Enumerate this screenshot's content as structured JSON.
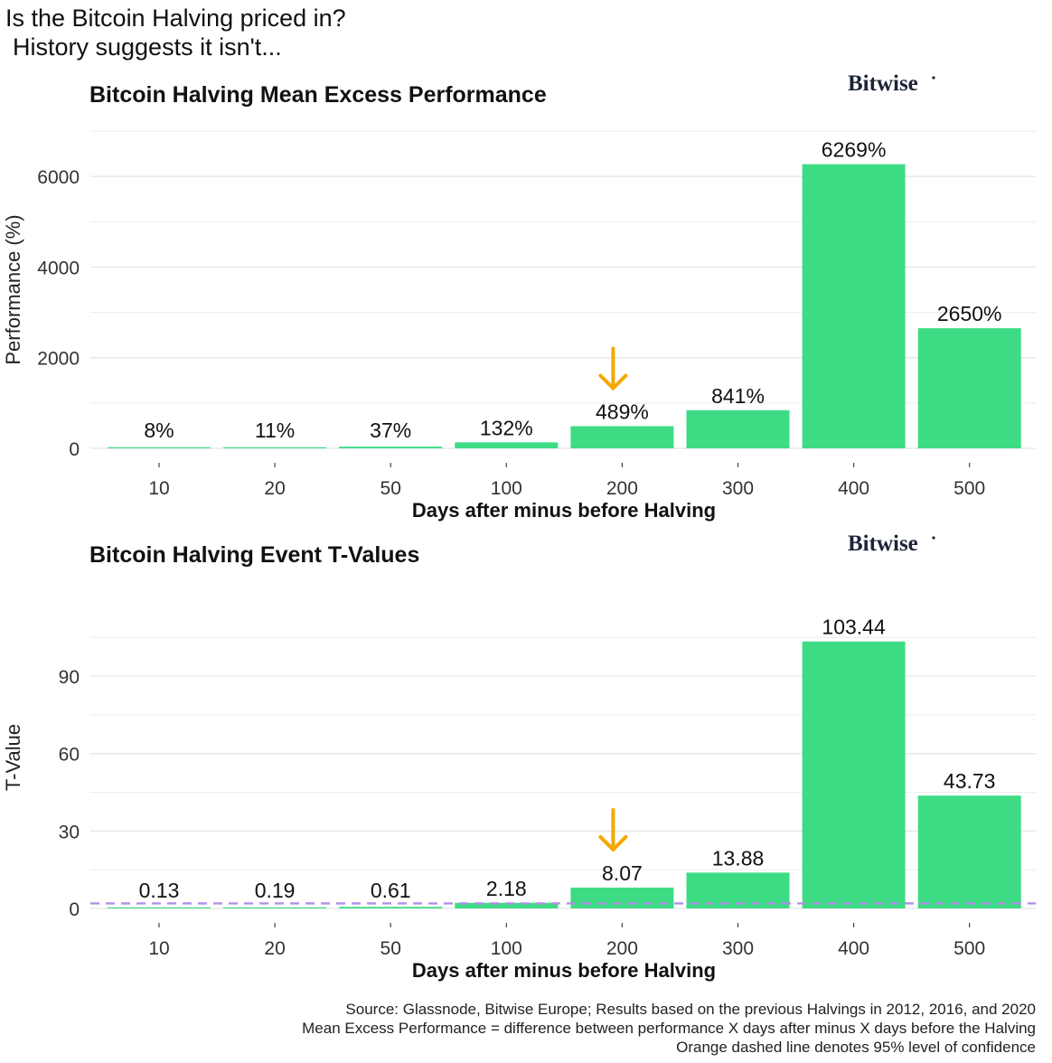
{
  "headline": {
    "line1": "Is the Bitcoin Halving priced in?",
    "line2": "History suggests it isn't..."
  },
  "brand": {
    "logo_text": "Bitwise"
  },
  "colors": {
    "bar": "#3ddc84",
    "arrow": "#f5a800",
    "threshold": "#b48ee8",
    "grid": "#ececec"
  },
  "chart_data": [
    {
      "type": "bar",
      "title": "Bitcoin Halving Mean Excess Performance",
      "xlabel": "Days after minus before Halving",
      "ylabel": "Performance (%)",
      "categories": [
        "10",
        "20",
        "50",
        "100",
        "200",
        "300",
        "400",
        "500"
      ],
      "values": [
        8,
        11,
        37,
        132,
        489,
        841,
        6269,
        2650
      ],
      "value_labels": [
        "8%",
        "11%",
        "37%",
        "132%",
        "489%",
        "841%",
        "6269%",
        "2650%"
      ],
      "ylim": [
        0,
        7000
      ],
      "yticks": [
        0,
        2000,
        4000,
        6000
      ],
      "grid": true,
      "highlight_category": "200"
    },
    {
      "type": "bar",
      "title": "Bitcoin Halving Event T-Values",
      "xlabel": "Days after minus before Halving",
      "ylabel": "T-Value",
      "categories": [
        "10",
        "20",
        "50",
        "100",
        "200",
        "300",
        "400",
        "500"
      ],
      "values": [
        0.13,
        0.19,
        0.61,
        2.18,
        8.07,
        13.88,
        103.44,
        43.73
      ],
      "value_labels": [
        "0.13",
        "0.19",
        "0.61",
        "2.18",
        "8.07",
        "13.88",
        "103.44",
        "43.73"
      ],
      "ylim": [
        0,
        117
      ],
      "yticks": [
        0,
        30,
        60,
        90
      ],
      "grid": true,
      "threshold": 1.96,
      "highlight_category": "200"
    }
  ],
  "footnotes": [
    "Source: Glassnode, Bitwise Europe; Results based on the previous Halvings in 2012, 2016, and 2020",
    "Mean Excess Performance = difference between performance X days after minus X days before the Halving",
    "Orange dashed line denotes 95% level of confidence"
  ]
}
